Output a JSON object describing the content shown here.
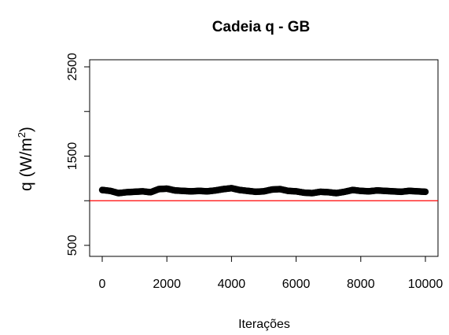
{
  "chart_data": {
    "type": "scatter",
    "title": "Cadeia q - GB",
    "xlabel": "Iterações",
    "ylabel": {
      "prefix": "q (W/m",
      "superscript": "2",
      "suffix": ")"
    },
    "xlim": [
      0,
      10000
    ],
    "ylim": [
      500,
      2500
    ],
    "x_ticks": [
      0,
      2000,
      4000,
      6000,
      8000,
      10000
    ],
    "x_tick_labels": [
      "0",
      "2000",
      "4000",
      "6000",
      "8000",
      "10000"
    ],
    "y_ticks": [
      500,
      1500,
      2500
    ],
    "y_tick_labels": [
      "500",
      "1500",
      "2500"
    ],
    "y_minor_ticks": [
      1000,
      2000
    ],
    "grid": false,
    "series": [
      {
        "marker_color": "#000000",
        "x": [
          0,
          250,
          500,
          750,
          1000,
          1250,
          1500,
          1750,
          2000,
          2250,
          2500,
          2750,
          3000,
          3250,
          3500,
          3750,
          4000,
          4250,
          4500,
          4750,
          5000,
          5250,
          5500,
          5750,
          6000,
          6250,
          6500,
          6750,
          7000,
          7250,
          7500,
          7750,
          8000,
          8250,
          8500,
          8750,
          9000,
          9250,
          9500,
          9750,
          10000
        ],
        "y": [
          1120,
          1110,
          1085,
          1095,
          1100,
          1105,
          1095,
          1130,
          1135,
          1115,
          1110,
          1105,
          1110,
          1105,
          1115,
          1130,
          1140,
          1120,
          1110,
          1100,
          1105,
          1125,
          1130,
          1110,
          1105,
          1090,
          1085,
          1100,
          1095,
          1085,
          1100,
          1120,
          1110,
          1105,
          1115,
          1110,
          1105,
          1100,
          1110,
          1105,
          1100
        ]
      }
    ],
    "reference_line": {
      "y": 1000,
      "color": "#ff0000"
    }
  }
}
